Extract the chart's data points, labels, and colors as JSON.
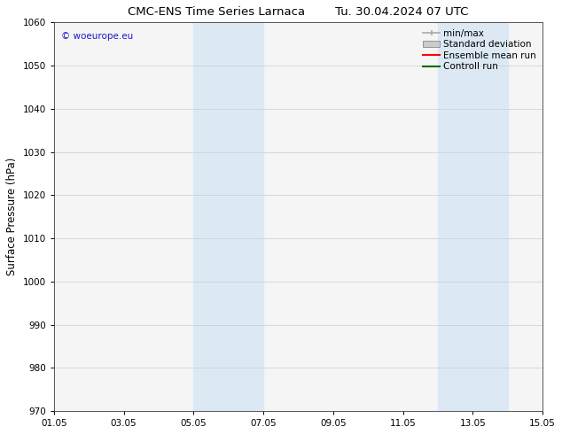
{
  "title_left": "CMC-ENS Time Series Larnaca",
  "title_right": "Tu. 30.04.2024 07 UTC",
  "ylabel": "Surface Pressure (hPa)",
  "ylim": [
    970,
    1060
  ],
  "yticks": [
    970,
    980,
    990,
    1000,
    1010,
    1020,
    1030,
    1040,
    1050,
    1060
  ],
  "xtick_labels": [
    "01.05",
    "03.05",
    "05.05",
    "07.05",
    "09.05",
    "11.05",
    "13.05",
    "15.05"
  ],
  "xtick_day_offsets": [
    0,
    2,
    4,
    6,
    8,
    10,
    12,
    14
  ],
  "shaded_bands": [
    {
      "x_start": 4,
      "x_end": 6
    },
    {
      "x_start": 11,
      "x_end": 13
    }
  ],
  "shaded_color": "#dce9f5",
  "watermark_text": "© woeurope.eu",
  "watermark_color": "#1a1acc",
  "legend_entries": [
    {
      "label": "min/max",
      "color": "#aaaaaa",
      "style": "minmax"
    },
    {
      "label": "Standard deviation",
      "color": "#cccccc",
      "style": "stddev"
    },
    {
      "label": "Ensemble mean run",
      "color": "#ff0000",
      "style": "line"
    },
    {
      "label": "Controll run",
      "color": "#006600",
      "style": "line"
    }
  ],
  "background_color": "#ffffff",
  "plot_bg_color": "#f5f5f5",
  "grid_color": "#cccccc",
  "title_fontsize": 9.5,
  "tick_fontsize": 7.5,
  "ylabel_fontsize": 8.5,
  "legend_fontsize": 7.5,
  "watermark_fontsize": 7.5
}
